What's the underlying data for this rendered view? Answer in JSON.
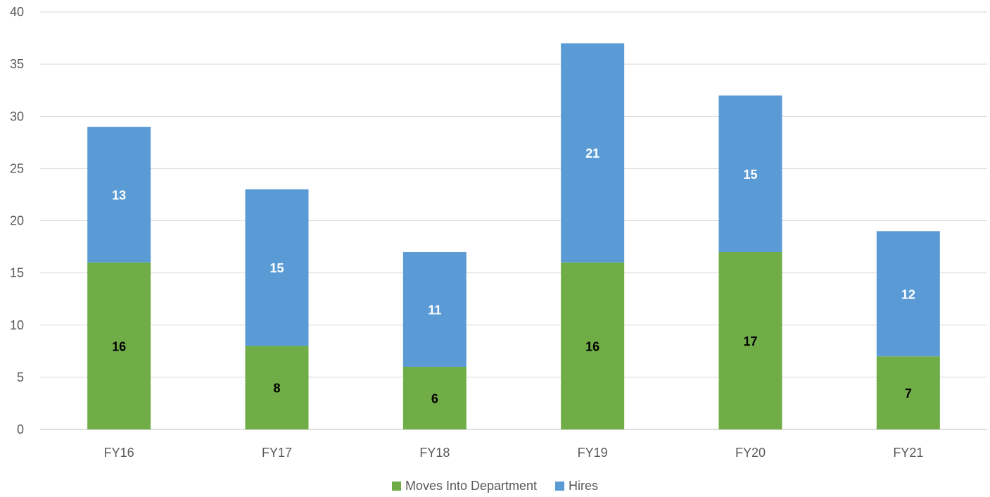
{
  "chart_data": {
    "type": "bar",
    "stacked": true,
    "categories": [
      "FY16",
      "FY17",
      "FY18",
      "FY19",
      "FY20",
      "FY21"
    ],
    "series": [
      {
        "name": "Moves Into Department",
        "values": [
          16,
          8,
          6,
          16,
          17,
          7
        ],
        "color": "#70AD47",
        "label_color": "#000000"
      },
      {
        "name": "Hires",
        "values": [
          13,
          15,
          11,
          21,
          15,
          12
        ],
        "color": "#5B9BD5",
        "label_color": "#FFFFFF"
      }
    ],
    "ylim": [
      0,
      40
    ],
    "yticks": [
      0,
      5,
      10,
      15,
      20,
      25,
      30,
      35,
      40
    ],
    "grid": true,
    "legend_position": "bottom",
    "title": "",
    "xlabel": "",
    "ylabel": ""
  }
}
